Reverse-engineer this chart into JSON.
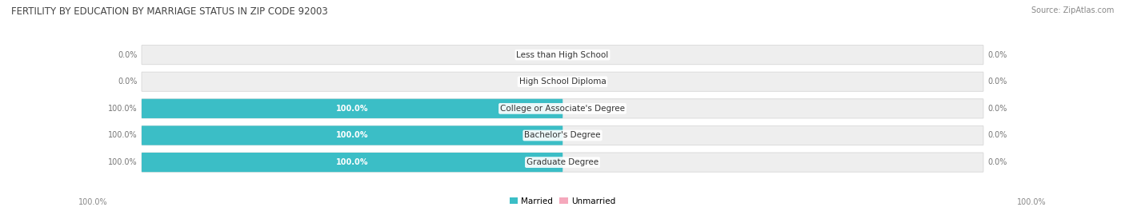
{
  "title": "FERTILITY BY EDUCATION BY MARRIAGE STATUS IN ZIP CODE 92003",
  "source": "Source: ZipAtlas.com",
  "categories": [
    "Less than High School",
    "High School Diploma",
    "College or Associate's Degree",
    "Bachelor's Degree",
    "Graduate Degree"
  ],
  "married_values": [
    0.0,
    0.0,
    100.0,
    100.0,
    100.0
  ],
  "unmarried_values": [
    0.0,
    0.0,
    0.0,
    0.0,
    0.0
  ],
  "married_color": "#3bbec6",
  "unmarried_color": "#f5a8bc",
  "bar_bg_color": "#eeeeee",
  "bar_bg_edge_color": "#d8d8d8",
  "legend_married": "Married",
  "legend_unmarried": "Unmarried",
  "fig_width": 14.06,
  "fig_height": 2.69,
  "background_color": "#ffffff",
  "title_fontsize": 8.5,
  "label_fontsize": 7.5,
  "bar_label_fontsize": 7.0,
  "source_fontsize": 7.0,
  "axis_label_left": "100.0%",
  "axis_label_right": "100.0%"
}
